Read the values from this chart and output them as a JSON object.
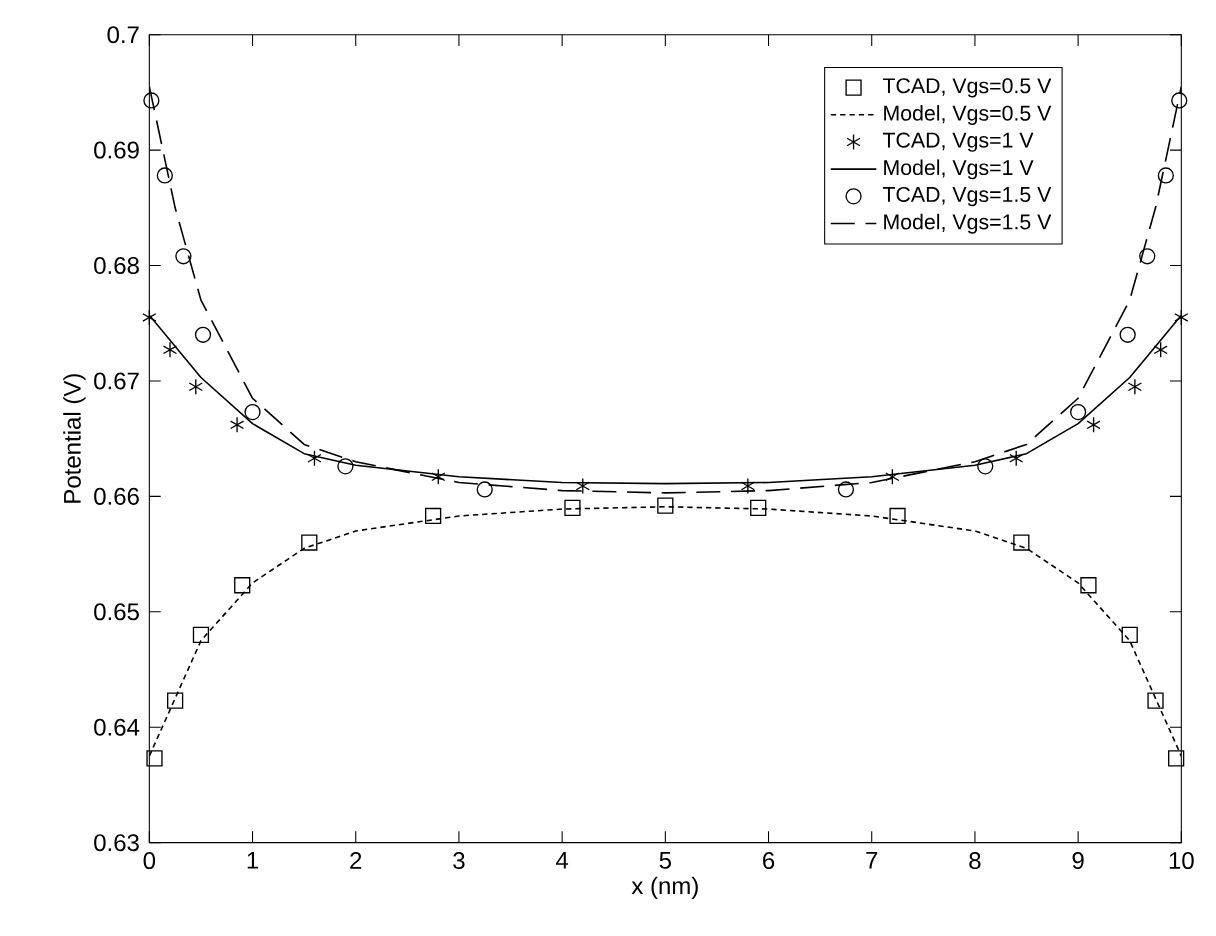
{
  "chart_data": {
    "type": "line",
    "xlabel": "x (nm)",
    "ylabel": "Potential (V)",
    "xlim": [
      0,
      10
    ],
    "ylim": [
      0.63,
      0.7
    ],
    "xticks": [
      0,
      1,
      2,
      3,
      4,
      5,
      6,
      7,
      8,
      9,
      10
    ],
    "yticks": [
      0.63,
      0.64,
      0.65,
      0.66,
      0.67,
      0.68,
      0.69,
      0.7
    ],
    "legend": "top right",
    "series": [
      {
        "name": "TCAD, Vgs=0.5 V",
        "type": "scatter",
        "marker": "square",
        "color": "#000000",
        "x": [
          0.05,
          0.25,
          0.5,
          0.9,
          1.55,
          2.75,
          4.1,
          5.0,
          5.9,
          7.25,
          8.45,
          9.1,
          9.5,
          9.75,
          9.95
        ],
        "values": [
          0.6373,
          0.6423,
          0.648,
          0.6523,
          0.656,
          0.6583,
          0.659,
          0.6592,
          0.659,
          0.6583,
          0.656,
          0.6523,
          0.648,
          0.6423,
          0.6373
        ]
      },
      {
        "name": "Model, Vgs=0.5 V",
        "line_style": "dotted",
        "color": "#000000",
        "x": [
          0,
          0.25,
          0.5,
          1,
          1.5,
          2,
          3,
          4,
          5,
          6,
          7,
          8,
          8.5,
          9,
          9.5,
          9.75,
          10
        ],
        "values": [
          0.6375,
          0.6425,
          0.6475,
          0.6525,
          0.6555,
          0.657,
          0.6583,
          0.6589,
          0.6591,
          0.6589,
          0.6583,
          0.657,
          0.6555,
          0.6525,
          0.6475,
          0.6425,
          0.6375
        ]
      },
      {
        "name": "TCAD, Vgs=1 V",
        "type": "scatter",
        "marker": "cross",
        "color": "#000000",
        "x": [
          0,
          0.2,
          0.45,
          0.85,
          1.6,
          2.8,
          4.2,
          5.8,
          7.2,
          8.4,
          9.15,
          9.55,
          9.8,
          10
        ],
        "values": [
          0.6755,
          0.6727,
          0.6695,
          0.6662,
          0.6633,
          0.6617,
          0.6609,
          0.6609,
          0.6617,
          0.6633,
          0.6662,
          0.6695,
          0.6727,
          0.6755
        ]
      },
      {
        "name": "Model, Vgs=1 V",
        "line_style": "solid",
        "color": "#000000",
        "x": [
          0,
          0.5,
          1,
          1.5,
          2,
          3,
          4,
          5,
          6,
          7,
          8,
          8.5,
          9,
          9.5,
          10
        ],
        "values": [
          0.6757,
          0.6703,
          0.6663,
          0.6637,
          0.6627,
          0.6617,
          0.6612,
          0.6611,
          0.6612,
          0.6617,
          0.6627,
          0.6637,
          0.6663,
          0.6703,
          0.6757
        ]
      },
      {
        "name": "TCAD, Vgs=1.5 V",
        "type": "scatter",
        "marker": "circle",
        "color": "#000000",
        "x": [
          0.02,
          0.15,
          0.33,
          0.52,
          1.0,
          1.9,
          3.25,
          6.75,
          8.1,
          9.0,
          9.48,
          9.67,
          9.85,
          9.98
        ],
        "values": [
          0.6943,
          0.6878,
          0.6808,
          0.674,
          0.6673,
          0.6626,
          0.6606,
          0.6606,
          0.6626,
          0.6673,
          0.674,
          0.6808,
          0.6878,
          0.6943
        ]
      },
      {
        "name": "Model, Vgs=1.5 V",
        "line_style": "dashed",
        "color": "#000000",
        "x": [
          0,
          0.25,
          0.5,
          1,
          1.5,
          2,
          3,
          4,
          5,
          6,
          7,
          8,
          8.5,
          9,
          9.5,
          9.75,
          10
        ],
        "values": [
          0.6955,
          0.685,
          0.677,
          0.6685,
          0.6645,
          0.663,
          0.6612,
          0.6605,
          0.6603,
          0.6605,
          0.6612,
          0.663,
          0.6645,
          0.6685,
          0.677,
          0.685,
          0.6955
        ]
      }
    ]
  }
}
